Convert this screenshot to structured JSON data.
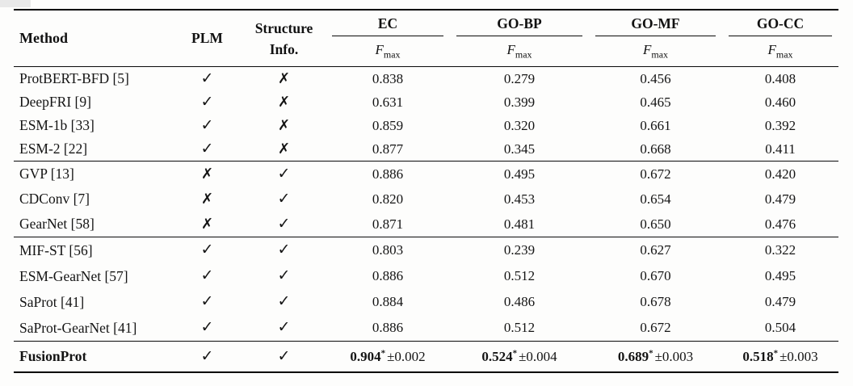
{
  "page": {
    "background": "#fdfdfc",
    "rule_color": "#000000",
    "text_color": "#141414",
    "corner_artifact_color": "#e9e9e9"
  },
  "table": {
    "header": {
      "method": "Method",
      "plm": "PLM",
      "structure_line1": "Structure",
      "structure_line2": "Info.",
      "metric_groups": [
        "EC",
        "GO-BP",
        "GO-MF",
        "GO-CC"
      ],
      "metric": {
        "main": "F",
        "sub": "max"
      }
    },
    "symbols": {
      "yes": "✓",
      "no": "✗"
    },
    "groups": [
      {
        "name": "plm-only",
        "rows": [
          {
            "method": "ProtBERT-BFD [5]",
            "plm": true,
            "structure": false,
            "values": [
              "0.838",
              "0.279",
              "0.456",
              "0.408"
            ]
          },
          {
            "method": "DeepFRI [9]",
            "plm": true,
            "structure": false,
            "values": [
              "0.631",
              "0.399",
              "0.465",
              "0.460"
            ]
          },
          {
            "method": "ESM-1b [33]",
            "plm": true,
            "structure": false,
            "values": [
              "0.859",
              "0.320",
              "0.661",
              "0.392"
            ]
          },
          {
            "method": "ESM-2 [22]",
            "plm": true,
            "structure": false,
            "values": [
              "0.877",
              "0.345",
              "0.668",
              "0.411"
            ]
          }
        ]
      },
      {
        "name": "structure-only",
        "rows": [
          {
            "method": "GVP [13]",
            "plm": false,
            "structure": true,
            "values": [
              "0.886",
              "0.495",
              "0.672",
              "0.420"
            ]
          },
          {
            "method": "CDConv [7]",
            "plm": false,
            "structure": true,
            "values": [
              "0.820",
              "0.453",
              "0.654",
              "0.479"
            ]
          },
          {
            "method": "GearNet [58]",
            "plm": false,
            "structure": true,
            "values": [
              "0.871",
              "0.481",
              "0.650",
              "0.476"
            ]
          }
        ]
      },
      {
        "name": "plm-and-structure",
        "rows": [
          {
            "method": "MIF-ST [56]",
            "plm": true,
            "structure": true,
            "values": [
              "0.803",
              "0.239",
              "0.627",
              "0.322"
            ]
          },
          {
            "method": "ESM-GearNet [57]",
            "plm": true,
            "structure": true,
            "values": [
              "0.886",
              "0.512",
              "0.670",
              "0.495"
            ]
          },
          {
            "method": "SaProt [41]",
            "plm": true,
            "structure": true,
            "values": [
              "0.884",
              "0.486",
              "0.678",
              "0.479"
            ]
          },
          {
            "method": "SaProt-GearNet [41]",
            "plm": true,
            "structure": true,
            "values": [
              "0.886",
              "0.512",
              "0.672",
              "0.504"
            ]
          }
        ]
      },
      {
        "name": "ours",
        "rows": [
          {
            "method": "FusionProt",
            "bold": true,
            "plm": true,
            "structure": true,
            "values": [
              {
                "value": "0.904",
                "sup": "*",
                "std": "±0.002"
              },
              {
                "value": "0.524",
                "sup": "*",
                "std": "±0.004"
              },
              {
                "value": "0.689",
                "sup": "*",
                "std": "±0.003"
              },
              {
                "value": "0.518",
                "sup": "*",
                "std": "±0.003"
              }
            ]
          }
        ]
      }
    ]
  }
}
